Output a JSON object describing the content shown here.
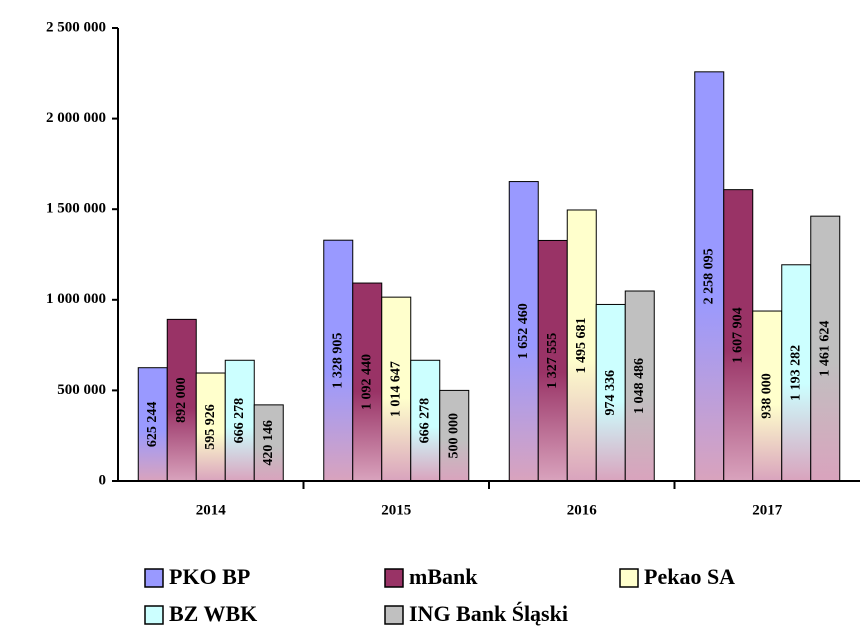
{
  "chart_data": {
    "type": "bar",
    "categories": [
      "2014",
      "2015",
      "2016",
      "2017"
    ],
    "series": [
      {
        "name": "PKO BP",
        "color": "#9999ff",
        "values": [
          625244,
          1328905,
          1652460,
          2258095
        ],
        "value_labels": [
          "625 244",
          "1 328 905",
          "1 652 460",
          "2 258 095"
        ]
      },
      {
        "name": "mBank",
        "color": "#993366",
        "values": [
          892000,
          1092440,
          1327555,
          1607904
        ],
        "value_labels": [
          "892 000",
          "1 092 440",
          "1 327 555",
          "1 607 904"
        ]
      },
      {
        "name": "Pekao SA",
        "color": "#ffffcc",
        "values": [
          595926,
          1014647,
          1495681,
          938000
        ],
        "value_labels": [
          "595 926",
          "1 014 647",
          "1 495 681",
          "938 000"
        ]
      },
      {
        "name": "BZ WBK",
        "color": "#ccffff",
        "values": [
          666278,
          666278,
          974336,
          1193282
        ],
        "value_labels": [
          "666 278",
          "666 278",
          "974 336",
          "1 193 282"
        ]
      },
      {
        "name": "ING Bank Śląski",
        "color": "#c0c0c0",
        "values": [
          420146,
          500000,
          1048486,
          1461624
        ],
        "value_labels": [
          "420 146",
          "500 000",
          "1 048 486",
          "1 461 624"
        ]
      }
    ],
    "ylim": [
      0,
      2500000
    ],
    "yticks": [
      0,
      {
        "value": 500000,
        "label": "500 000"
      },
      {
        "value": 1000000,
        "label": "1 000 000"
      },
      {
        "value": 1500000,
        "label": "1 500 000"
      },
      {
        "value": 2000000,
        "label": "2 000 000"
      },
      {
        "value": 2500000,
        "label": "2 500 000"
      }
    ],
    "legend": "bottom"
  }
}
